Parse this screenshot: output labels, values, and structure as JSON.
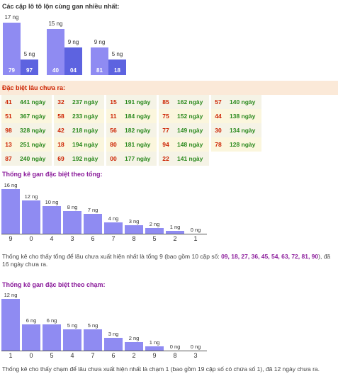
{
  "pairs_section": {
    "title": "Các cặp lô tô lộn cùng gan nhiều nhất:",
    "groups": [
      {
        "left": {
          "label": "17 ng",
          "num": "79",
          "value": 17
        },
        "right": {
          "label": "5 ng",
          "num": "97",
          "value": 5
        }
      },
      {
        "left": {
          "label": "15 ng",
          "num": "40",
          "value": 15
        },
        "right": {
          "label": "9 ng",
          "num": "04",
          "value": 9
        }
      },
      {
        "left": {
          "label": "9 ng",
          "num": "81",
          "value": 9
        },
        "right": {
          "label": "5 ng",
          "num": "18",
          "value": 5
        }
      }
    ],
    "colors": {
      "left": "#8f8bf2",
      "right": "#5d63e0"
    }
  },
  "special_section": {
    "title": "Đặc biệt lâu chưa ra:",
    "rows": [
      [
        [
          "41",
          "441 ngày"
        ],
        [
          "32",
          "237 ngày"
        ],
        [
          "15",
          "191 ngày"
        ],
        [
          "85",
          "162 ngày"
        ],
        [
          "57",
          "140 ngày"
        ]
      ],
      [
        [
          "51",
          "367 ngày"
        ],
        [
          "58",
          "233 ngày"
        ],
        [
          "11",
          "184 ngày"
        ],
        [
          "75",
          "152 ngày"
        ],
        [
          "44",
          "138 ngày"
        ]
      ],
      [
        [
          "98",
          "328 ngày"
        ],
        [
          "42",
          "218 ngày"
        ],
        [
          "56",
          "182 ngày"
        ],
        [
          "77",
          "149 ngày"
        ],
        [
          "30",
          "134 ngày"
        ]
      ],
      [
        [
          "13",
          "251 ngày"
        ],
        [
          "18",
          "194 ngày"
        ],
        [
          "80",
          "181 ngày"
        ],
        [
          "94",
          "148 ngày"
        ],
        [
          "78",
          "128 ngày"
        ]
      ],
      [
        [
          "87",
          "240 ngày"
        ],
        [
          "69",
          "192 ngày"
        ],
        [
          "00",
          "177 ngày"
        ],
        [
          "22",
          "141 ngày"
        ]
      ]
    ]
  },
  "total_section": {
    "title": "Thống kê gan đặc biệt theo tổng:",
    "chart_data": {
      "type": "bar",
      "categories": [
        "9",
        "0",
        "4",
        "3",
        "6",
        "7",
        "8",
        "5",
        "2",
        "1"
      ],
      "values": [
        16,
        12,
        10,
        8,
        7,
        4,
        3,
        2,
        1,
        0
      ],
      "bar_labels": [
        "16 ng",
        "12 ng",
        "10 ng",
        "8 ng",
        "7 ng",
        "4 ng",
        "3 ng",
        "2 ng",
        "1 ng",
        "0 ng"
      ],
      "bar_color": "#8f8bf2"
    },
    "note_prefix": "Thống kê cho thấy tổng để lâu chưa xuất hiện nhất là tổng 9 (bao gồm 10 cặp số: ",
    "note_highlight": "09, 18, 27, 36, 45, 54, 63, 72, 81, 90",
    "note_suffix": "), đã 16 ngày chưa ra."
  },
  "touch_section": {
    "title": "Thống kê gan đặc biệt theo chạm:",
    "chart_data": {
      "type": "bar",
      "categories": [
        "1",
        "0",
        "5",
        "4",
        "7",
        "6",
        "2",
        "9",
        "8",
        "3"
      ],
      "values": [
        12,
        6,
        6,
        5,
        5,
        3,
        2,
        1,
        0,
        0
      ],
      "bar_labels": [
        "12 ng",
        "6 ng",
        "6 ng",
        "5 ng",
        "5 ng",
        "3 ng",
        "2 ng",
        "1 ng",
        "0 ng",
        "0 ng"
      ],
      "bar_color": "#8f8bf2"
    },
    "note": "Thống kê cho thấy chạm để lâu chưa xuất hiện nhất là chạm 1 (bao gồm 19 cặp số có chứa số 1), đã 12 ngày chưa ra."
  }
}
